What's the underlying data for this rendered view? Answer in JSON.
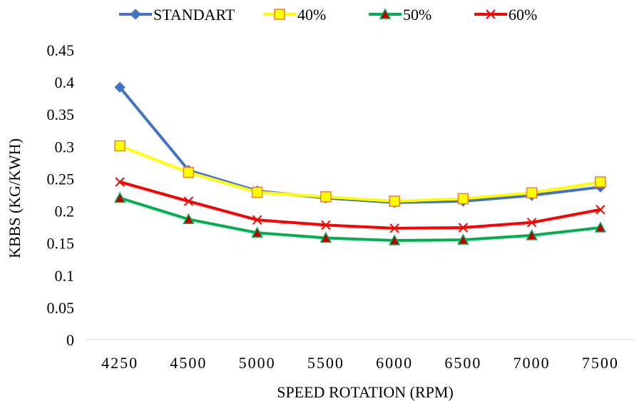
{
  "chart_data": {
    "type": "line",
    "xlabel": "SPEED ROTATION (RPM)",
    "ylabel": "KBBS (KG/KWH)",
    "categories": [
      "4250",
      "4500",
      "5000",
      "5500",
      "6000",
      "6500",
      "7000",
      "7500"
    ],
    "ylim": [
      0,
      0.45
    ],
    "yticks": [
      0,
      0.05,
      0.1,
      0.15,
      0.2,
      0.25,
      0.3,
      0.35,
      0.4,
      0.45
    ],
    "ytick_labels": [
      "0",
      "0.05",
      "0.1",
      "0.15",
      "0.2",
      "0.25",
      "0.3",
      "0.35",
      "0.4",
      "0.45"
    ],
    "grid": false,
    "legend_position": "top",
    "series": [
      {
        "name": "STANDART",
        "color": "#4472C4",
        "marker": "diamond",
        "values": [
          0.392,
          0.263,
          0.231,
          0.22,
          0.213,
          0.215,
          0.224,
          0.237
        ]
      },
      {
        "name": "40%",
        "color": "#FFFF00",
        "marker_fill": "#FFFF00",
        "marker_stroke": "#ED7D31",
        "marker": "square",
        "values": [
          0.301,
          0.26,
          0.229,
          0.222,
          0.215,
          0.219,
          0.228,
          0.245
        ]
      },
      {
        "name": "50%",
        "color": "#00B050",
        "marker_fill": "#C00000",
        "marker_stroke": "#00B050",
        "marker": "triangle",
        "values": [
          0.22,
          0.187,
          0.166,
          0.158,
          0.154,
          0.155,
          0.162,
          0.174
        ]
      },
      {
        "name": "60%",
        "color": "#FF0000",
        "marker": "x",
        "values": [
          0.245,
          0.215,
          0.186,
          0.178,
          0.173,
          0.174,
          0.182,
          0.202
        ]
      }
    ]
  }
}
